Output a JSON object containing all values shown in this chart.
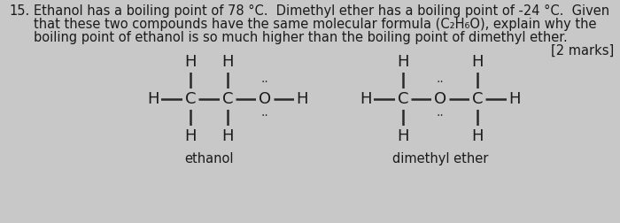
{
  "bg_color": "#c8c8c8",
  "text_color": "#1a1a1a",
  "line_color": "#2a2a2a",
  "question_number": "15.",
  "question_text_line1": "Ethanol has a boiling point of 78 °C.  Dimethyl ether has a boiling point of -24 °C.  Given",
  "question_text_line2": "that these two compounds have the same molecular formula (C₂H₆O), explain why the",
  "question_text_line3": "boiling point of ethanol is so much higher than the boiling point of dimethyl ether.",
  "marks": "[2 marks]",
  "label_ethanol": "ethanol",
  "label_dimethyl": "dimethyl ether",
  "font_size_text": 10.5,
  "font_size_label": 10.5,
  "font_size_atom": 13,
  "font_size_dots": 10
}
